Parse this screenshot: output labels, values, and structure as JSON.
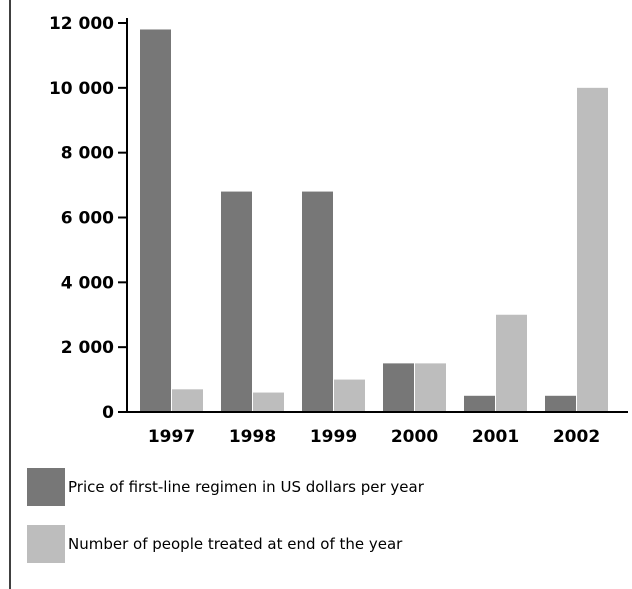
{
  "chart_data": {
    "type": "bar",
    "title": "",
    "xlabel": "",
    "ylabel": "",
    "categories": [
      "1997",
      "1998",
      "1999",
      "2000",
      "2001",
      "2002"
    ],
    "series": [
      {
        "name": "Price of first-line regimen in US dollars per year",
        "color": "#777777",
        "values": [
          11800,
          6800,
          6800,
          1500,
          500,
          500
        ]
      },
      {
        "name": "Number of people treated at end of the year",
        "color": "#bdbdbd",
        "values": [
          700,
          600,
          1000,
          1500,
          3000,
          10000
        ]
      }
    ],
    "ylim": [
      0,
      12000
    ],
    "yticks": [
      {
        "value": 0,
        "label": "0"
      },
      {
        "value": 2000,
        "label": "2 000"
      },
      {
        "value": 4000,
        "label": "4 000"
      },
      {
        "value": 6000,
        "label": "6 000"
      },
      {
        "value": 8000,
        "label": "8 000"
      },
      {
        "value": 10000,
        "label": "10 000"
      },
      {
        "value": 12000,
        "label": "12 000"
      }
    ],
    "grid": false,
    "legend": "bottom-left"
  }
}
